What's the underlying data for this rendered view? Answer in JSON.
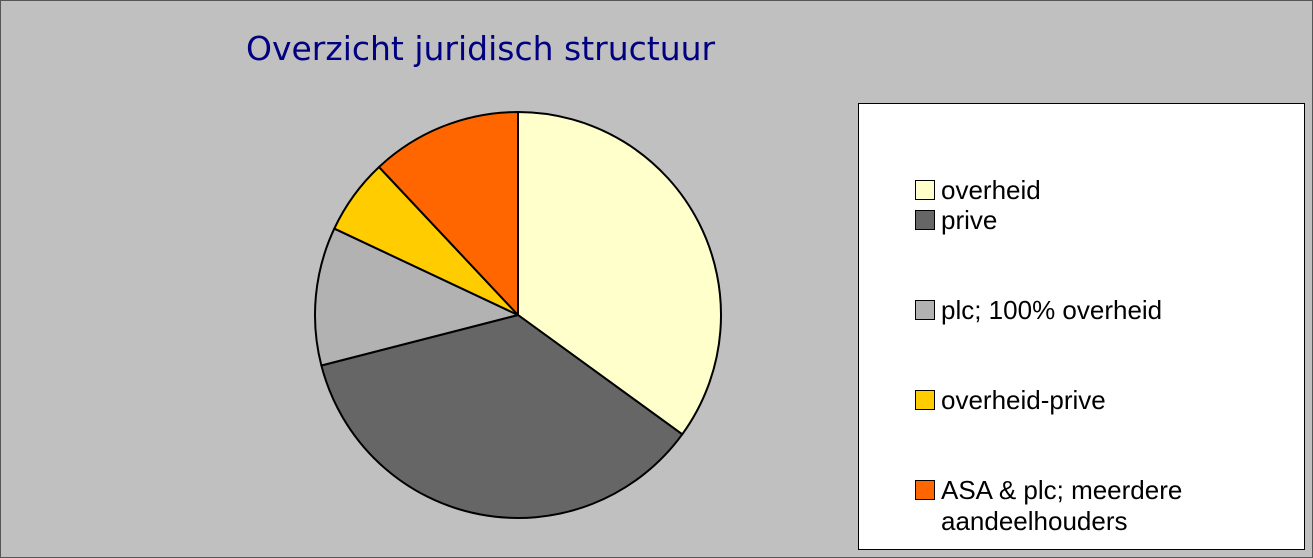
{
  "chart_data": {
    "type": "pie",
    "title": "Overzicht juridisch structuur",
    "categories": [
      "overheid",
      "prive",
      "plc; 100% overheid",
      "overheid-prive",
      "ASA & plc; meerdere aandeelhouders"
    ],
    "values": [
      35,
      36,
      11,
      6,
      12
    ],
    "colors": [
      "#ffffcc",
      "#666666",
      "#b2b2b2",
      "#ffcc00",
      "#ff6600"
    ],
    "legend": "right"
  }
}
